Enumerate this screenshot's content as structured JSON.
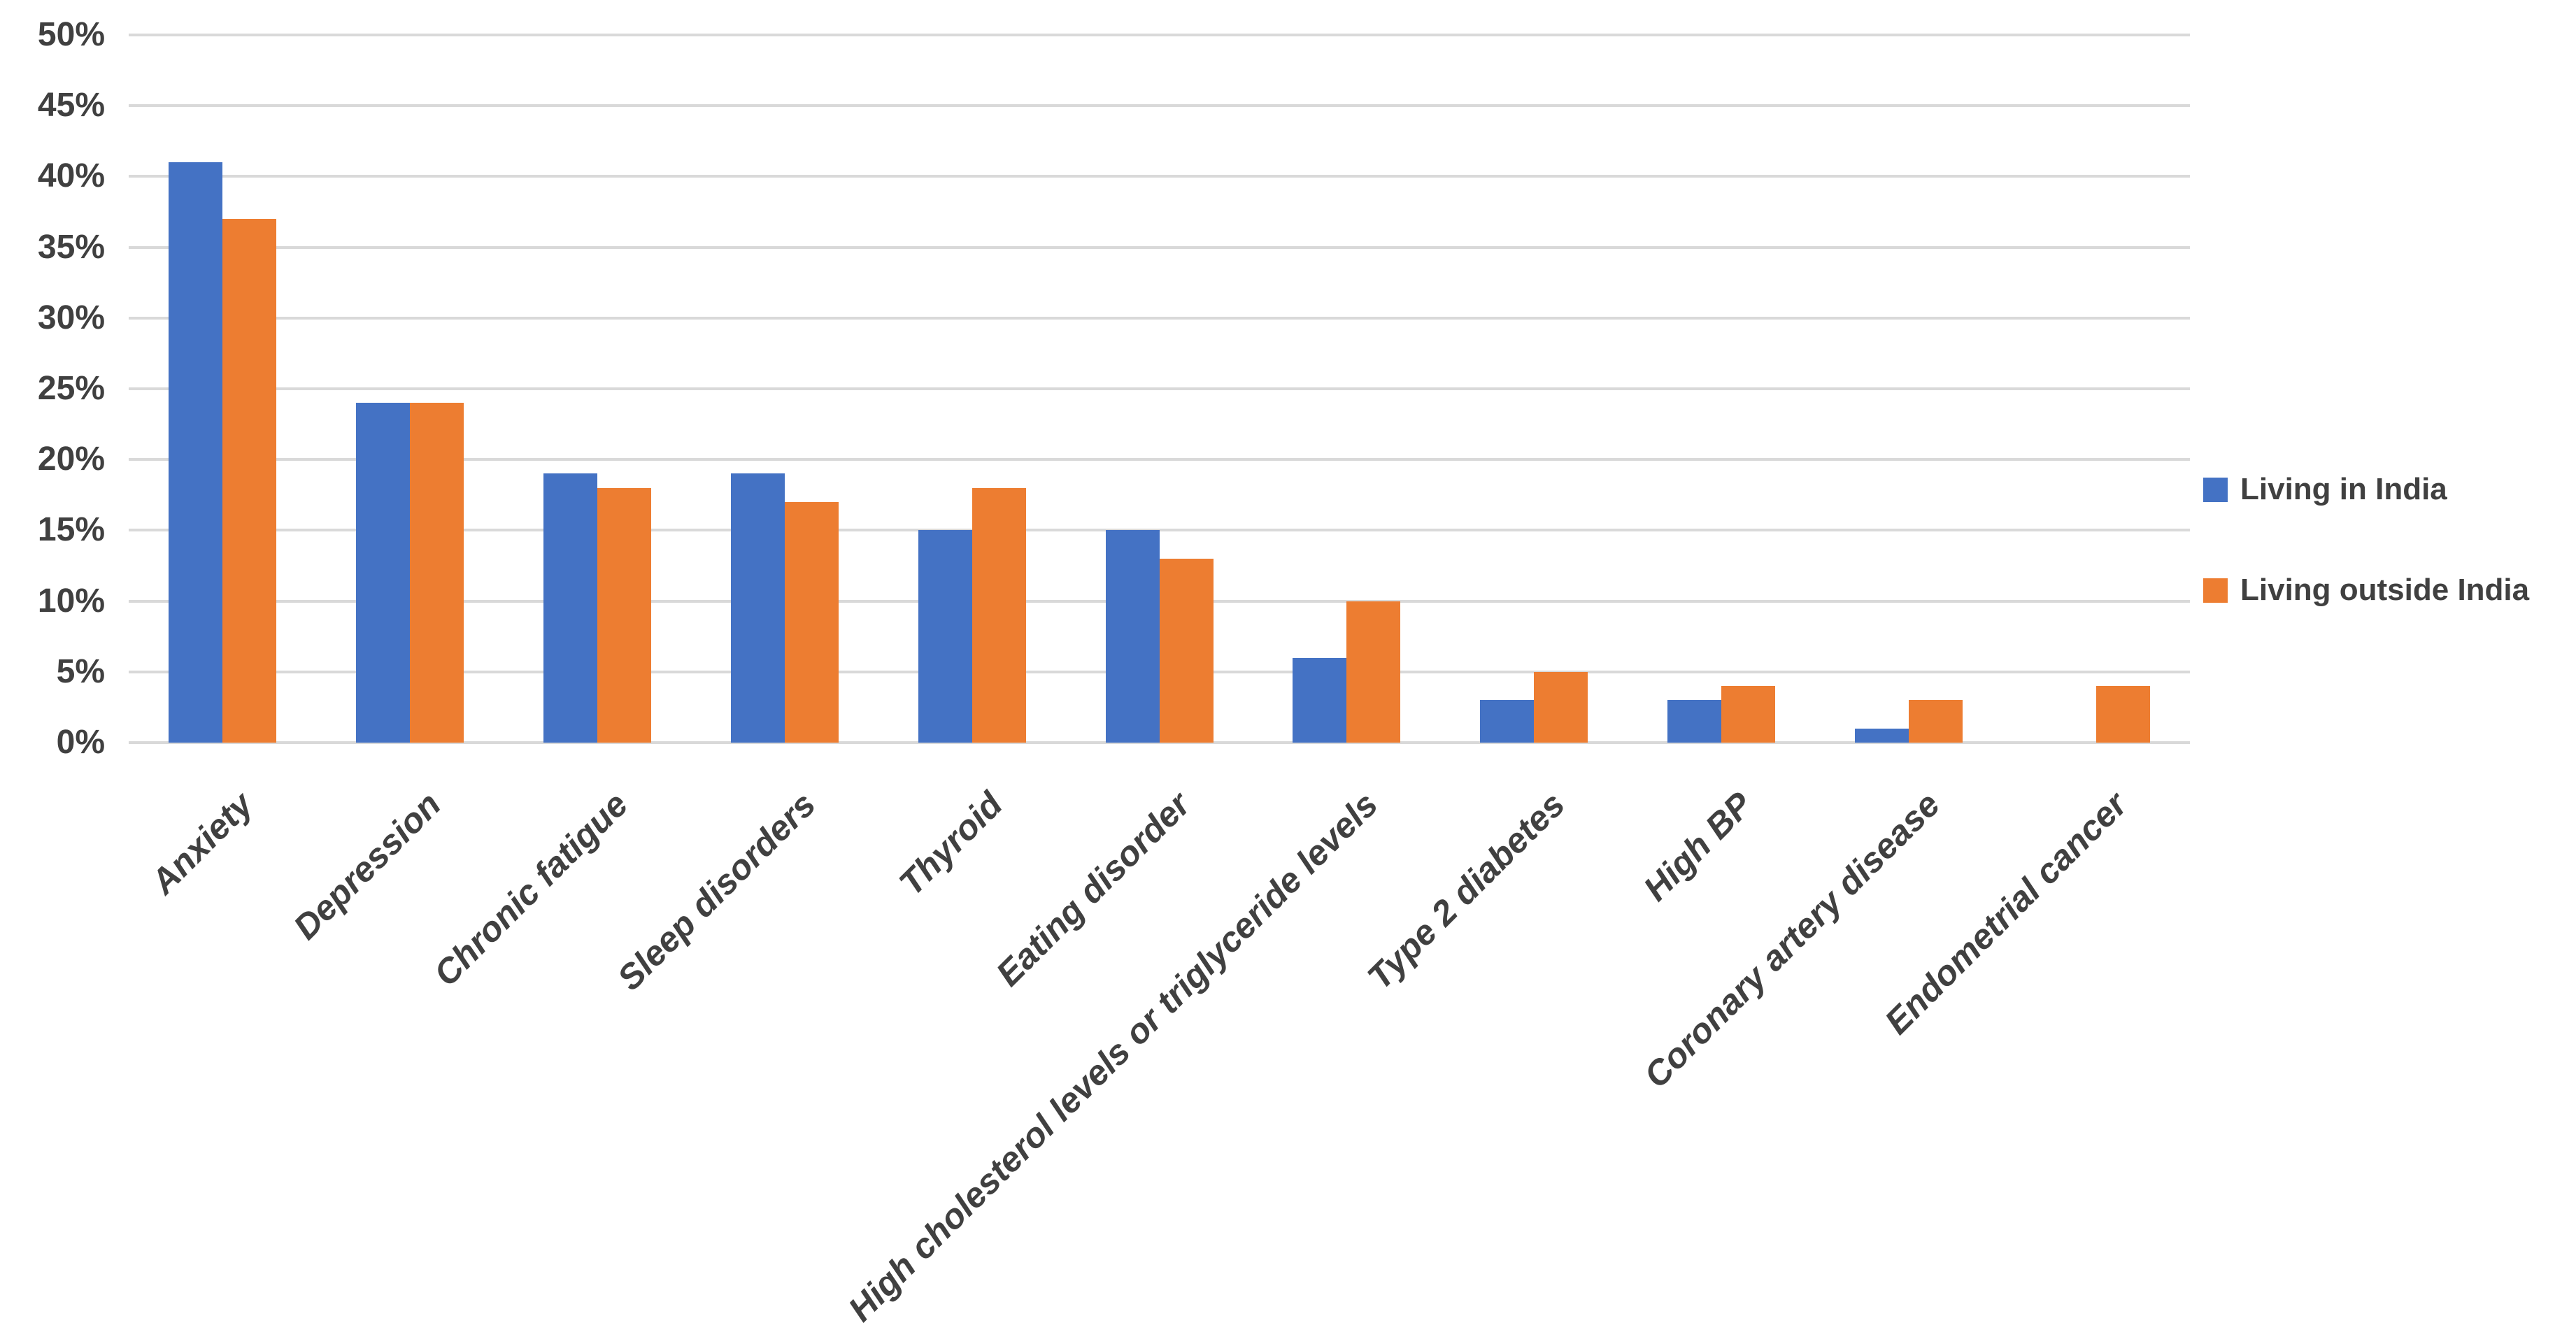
{
  "chart_data": {
    "type": "bar",
    "title": "",
    "categories": [
      "Anxiety",
      "Depression",
      "Chronic fatigue",
      "Sleep disorders",
      "Thyroid",
      "Eating disorder",
      "High cholesterol levels or triglyceride levels",
      "Type 2 diabetes",
      "High BP",
      "Coronary artery disease",
      "Endometrial cancer"
    ],
    "series": [
      {
        "name": "Living in India",
        "color": "#4472C4",
        "values": [
          41,
          24,
          19,
          19,
          15,
          15,
          6,
          3,
          3,
          1,
          0
        ]
      },
      {
        "name": "Living outside India",
        "color": "#ED7D31",
        "values": [
          37,
          24,
          18,
          17,
          18,
          13,
          10,
          5,
          4,
          3,
          4
        ]
      }
    ],
    "xlabel": "",
    "ylabel": "",
    "ylim": [
      0,
      50
    ],
    "ytick_step": 5,
    "ytick_suffix": "%",
    "grid": "horizontal",
    "gridline_color": "#D9D9D9",
    "axis_text_color": "#404040",
    "background": "#FFFFFF",
    "legend_position": "right"
  }
}
